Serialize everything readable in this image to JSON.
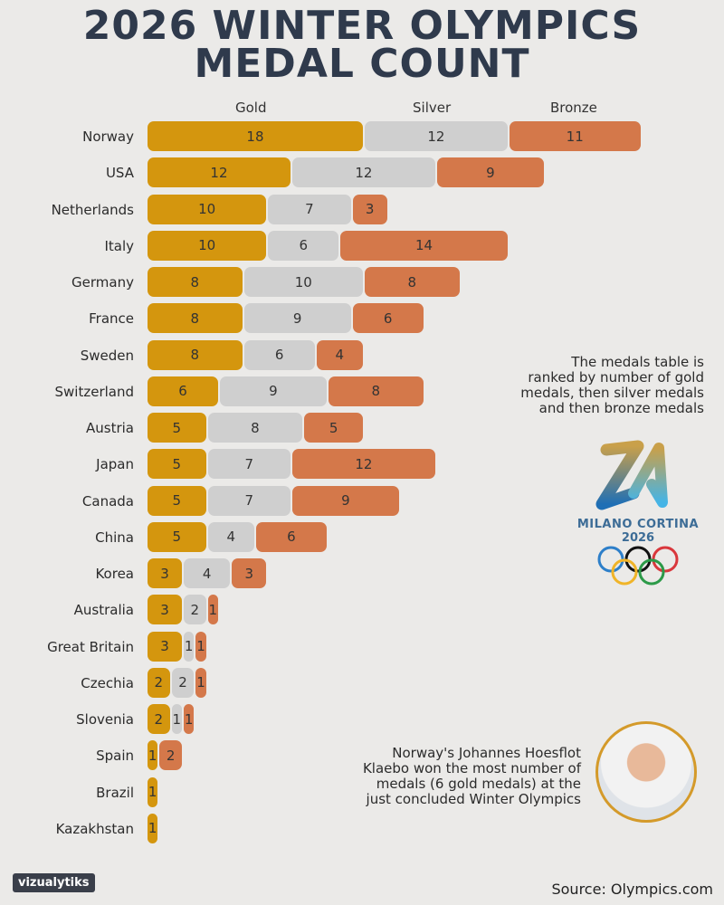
{
  "title_line1": "2026 WINTER OLYMPICS",
  "title_line2": "MEDAL COUNT",
  "chart_data": {
    "type": "bar",
    "orientation": "horizontal",
    "stacked": true,
    "categories": [
      "Norway",
      "USA",
      "Netherlands",
      "Italy",
      "Germany",
      "France",
      "Sweden",
      "Switzerland",
      "Austria",
      "Japan",
      "Canada",
      "China",
      "Korea",
      "Australia",
      "Great Britain",
      "Czechia",
      "Slovenia",
      "Spain",
      "Brazil",
      "Kazakhstan"
    ],
    "series": [
      {
        "name": "Gold",
        "color": "#d4960e",
        "values": [
          18,
          12,
          10,
          10,
          8,
          8,
          8,
          6,
          5,
          5,
          5,
          5,
          3,
          3,
          3,
          2,
          2,
          1,
          1,
          1
        ]
      },
      {
        "name": "Silver",
        "color": "#cfcfcf",
        "values": [
          12,
          12,
          7,
          6,
          10,
          9,
          6,
          9,
          8,
          7,
          7,
          4,
          4,
          2,
          1,
          2,
          1,
          0,
          0,
          0
        ]
      },
      {
        "name": "Bronze",
        "color": "#d4784a",
        "values": [
          11,
          9,
          3,
          14,
          8,
          6,
          4,
          8,
          5,
          12,
          9,
          6,
          3,
          1,
          1,
          1,
          1,
          2,
          0,
          0
        ]
      }
    ],
    "legend": "top",
    "data_labels": true
  },
  "note_ranking": [
    "The medals table is",
    "ranked by number of gold",
    "medals, then silver medals",
    "and then bronze medals"
  ],
  "logo_text": "MILANO CORTINA",
  "logo_year": "2026",
  "note_athlete": [
    "Norway's Johannes Hoesflot",
    "Klaebo won the most number of",
    "medals (6 gold medals) at the",
    "just concluded Winter Olympics"
  ],
  "brand": "vizualytiks",
  "source": "Source: Olympics.com"
}
